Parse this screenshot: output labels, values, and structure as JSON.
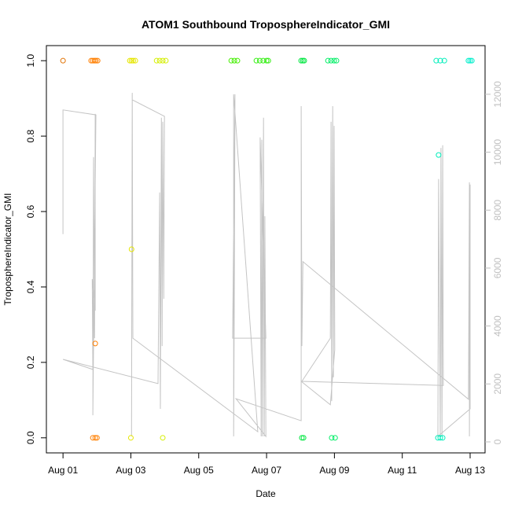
{
  "chart_data": {
    "type": "scatter",
    "title": "ATOM1 Southbound TroposphereIndicator_GMI",
    "xlabel": "Date",
    "ylabel": "TroposphereIndicator_GMI",
    "xlim": [
      -0.49,
      12.44
    ],
    "xticks": [
      {
        "value": 0,
        "label": "Aug 01"
      },
      {
        "value": 2,
        "label": "Aug 03"
      },
      {
        "value": 4,
        "label": "Aug 05"
      },
      {
        "value": 6,
        "label": "Aug 07"
      },
      {
        "value": 8,
        "label": "Aug 09"
      },
      {
        "value": 10,
        "label": "Aug 11"
      },
      {
        "value": 12,
        "label": "Aug 13"
      }
    ],
    "ylim": [
      -0.04,
      1.04
    ],
    "yticks": [
      {
        "value": 0,
        "label": "0.0"
      },
      {
        "value": 0.2,
        "label": "0.2"
      },
      {
        "value": 0.4,
        "label": "0.4"
      },
      {
        "value": 0.6,
        "label": "0.6"
      },
      {
        "value": 0.8,
        "label": "0.8"
      },
      {
        "value": 1,
        "label": "1.0"
      }
    ],
    "y2lim": [
      -380,
      13680
    ],
    "y2ticks": [
      0,
      2000,
      4000,
      6000,
      8000,
      10000,
      12000
    ],
    "y2tick_color": "#c0c0c0",
    "series": [
      {
        "type": "line",
        "axis": "y2",
        "color": "#c4c4c4",
        "x": [
          0,
          0,
          0.97,
          0.88,
          0.9,
          0.93,
          0.95,
          0.95,
          0.86,
          0.88,
          0,
          2.8,
          2.85,
          2.87,
          2.9,
          2.92,
          2.94,
          2.97,
          2.99,
          2.04,
          2.02,
          2.04,
          2.06,
          5.74,
          5.03,
          5.03,
          5.05,
          5.07,
          5.0,
          5.98,
          5.81,
          5.84,
          5.86,
          5.88,
          5.91,
          5.93,
          5.95,
          5.98,
          5.1,
          7.02,
          7.02,
          7.04,
          7.07,
          11.95,
          11.98,
          11.98,
          12.0,
          12.0,
          11.05,
          11.07,
          11.12,
          11.14,
          11.17,
          11.19,
          11.21,
          7.04,
          7.88,
          7.9,
          7.92,
          7.95,
          7.97,
          7.99,
          8.01,
          7.88,
          7.02
        ],
        "values": [
          7170,
          11460,
          11290,
          920,
          9830,
          3580,
          11320,
          4530,
          5620,
          2500,
          2850,
          2010,
          8610,
          1140,
          11190,
          3310,
          11050,
          4940,
          11240,
          11810,
          190,
          12050,
          3580,
          350,
          12000,
          190,
          5350,
          12000,
          3580,
          3580,
          10510,
          190,
          10430,
          190,
          11190,
          190,
          7790,
          190,
          1490,
          730,
          11590,
          3310,
          6220,
          1470,
          8960,
          190,
          8880,
          1140,
          190,
          9070,
          190,
          10150,
          190,
          10240,
          1950,
          2090,
          3580,
          11050,
          1410,
          11590,
          2230,
          10910,
          3180,
          1280,
          2090
        ]
      },
      {
        "color": "#e07000",
        "x": [
          0
        ],
        "values": [
          1
        ]
      },
      {
        "color": "#ff7f00",
        "x": [
          0.83,
          0.88,
          0.93,
          0.97,
          1.02,
          0.88,
          0.95,
          1.0,
          0.95
        ],
        "values": [
          1,
          1,
          1,
          1,
          1,
          0,
          0,
          0,
          0.25
        ]
      },
      {
        "color": "#e6e600",
        "x": [
          1.97,
          2.02,
          2.07,
          2.13,
          2.0,
          2.02
        ],
        "values": [
          1,
          1,
          1,
          1,
          0,
          0.5
        ]
      },
      {
        "color": "#d4ee00",
        "x": [
          2.76,
          2.85,
          2.94,
          3.03,
          2.94
        ],
        "values": [
          1,
          1,
          1,
          1,
          0
        ]
      },
      {
        "color": "#44ee00",
        "x": [
          4.96,
          5.05,
          5.14
        ],
        "values": [
          1,
          1,
          1
        ]
      },
      {
        "color": "#33ee11",
        "x": [
          5.7,
          5.8,
          5.9,
          6.0,
          6.05
        ],
        "values": [
          1,
          1,
          1,
          1,
          1
        ]
      },
      {
        "color": "#00e640",
        "x": [
          7.02,
          7.07,
          7.11,
          7.04,
          7.09
        ],
        "values": [
          1,
          1,
          1,
          0,
          0
        ]
      },
      {
        "color": "#00ee66",
        "x": [
          7.81,
          7.9,
          7.99,
          8.06,
          7.92,
          8.02
        ],
        "values": [
          1,
          1,
          1,
          1,
          0,
          0
        ]
      },
      {
        "color": "#00eebb",
        "x": [
          11.0,
          11.12,
          11.24,
          11.05,
          11.12,
          11.19,
          11.07
        ],
        "values": [
          1,
          1,
          1,
          0,
          0,
          0,
          0.75
        ]
      },
      {
        "color": "#00eecc",
        "x": [
          11.95,
          12.0,
          12.05
        ],
        "values": [
          1,
          1,
          1
        ]
      }
    ]
  }
}
